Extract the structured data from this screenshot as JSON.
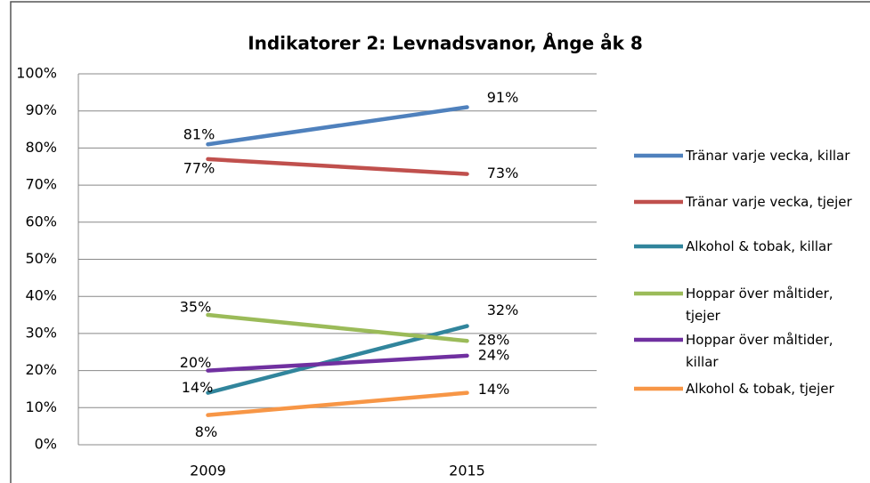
{
  "chart_data": {
    "type": "line",
    "title": "Indikatorer 2: Levnadsvanor, Ånge åk 8",
    "categories": [
      "2009",
      "2015"
    ],
    "series": [
      {
        "name": "Tränar varje vecka, killar",
        "color": "#4f81bd",
        "values": [
          81,
          91
        ],
        "value_labels": [
          "81%",
          "91%"
        ]
      },
      {
        "name": "Tränar varje vecka, tjejer",
        "color": "#c0504d",
        "values": [
          77,
          73
        ],
        "value_labels": [
          "77%",
          "73%"
        ]
      },
      {
        "name": "Alkohol & tobak, killar",
        "color": "#31859c",
        "values": [
          14,
          32
        ],
        "value_labels": [
          "14%",
          "32%"
        ]
      },
      {
        "name": "Hoppar över måltider, tjejer",
        "color": "#9bbb59",
        "values": [
          35,
          28
        ],
        "value_labels": [
          "35%",
          "28%"
        ]
      },
      {
        "name": "Hoppar över måltider, killar",
        "color": "#7030a0",
        "values": [
          20,
          24
        ],
        "value_labels": [
          "20%",
          "24%"
        ]
      },
      {
        "name": "Alkohol & tobak, tjejer",
        "color": "#f79646",
        "values": [
          8,
          14
        ],
        "value_labels": [
          "8%",
          "14%"
        ]
      }
    ],
    "ylim": [
      0,
      100
    ],
    "yticks": [
      {
        "value": 0,
        "label": "0%"
      },
      {
        "value": 10,
        "label": "10%"
      },
      {
        "value": 20,
        "label": "20%"
      },
      {
        "value": 30,
        "label": "30%"
      },
      {
        "value": 40,
        "label": "40%"
      },
      {
        "value": 50,
        "label": "50%"
      },
      {
        "value": 60,
        "label": "60%"
      },
      {
        "value": 70,
        "label": "70%"
      },
      {
        "value": 80,
        "label": "80%"
      },
      {
        "value": 90,
        "label": "90%"
      },
      {
        "value": 100,
        "label": "100%"
      }
    ],
    "grid": true,
    "legend": "right"
  }
}
